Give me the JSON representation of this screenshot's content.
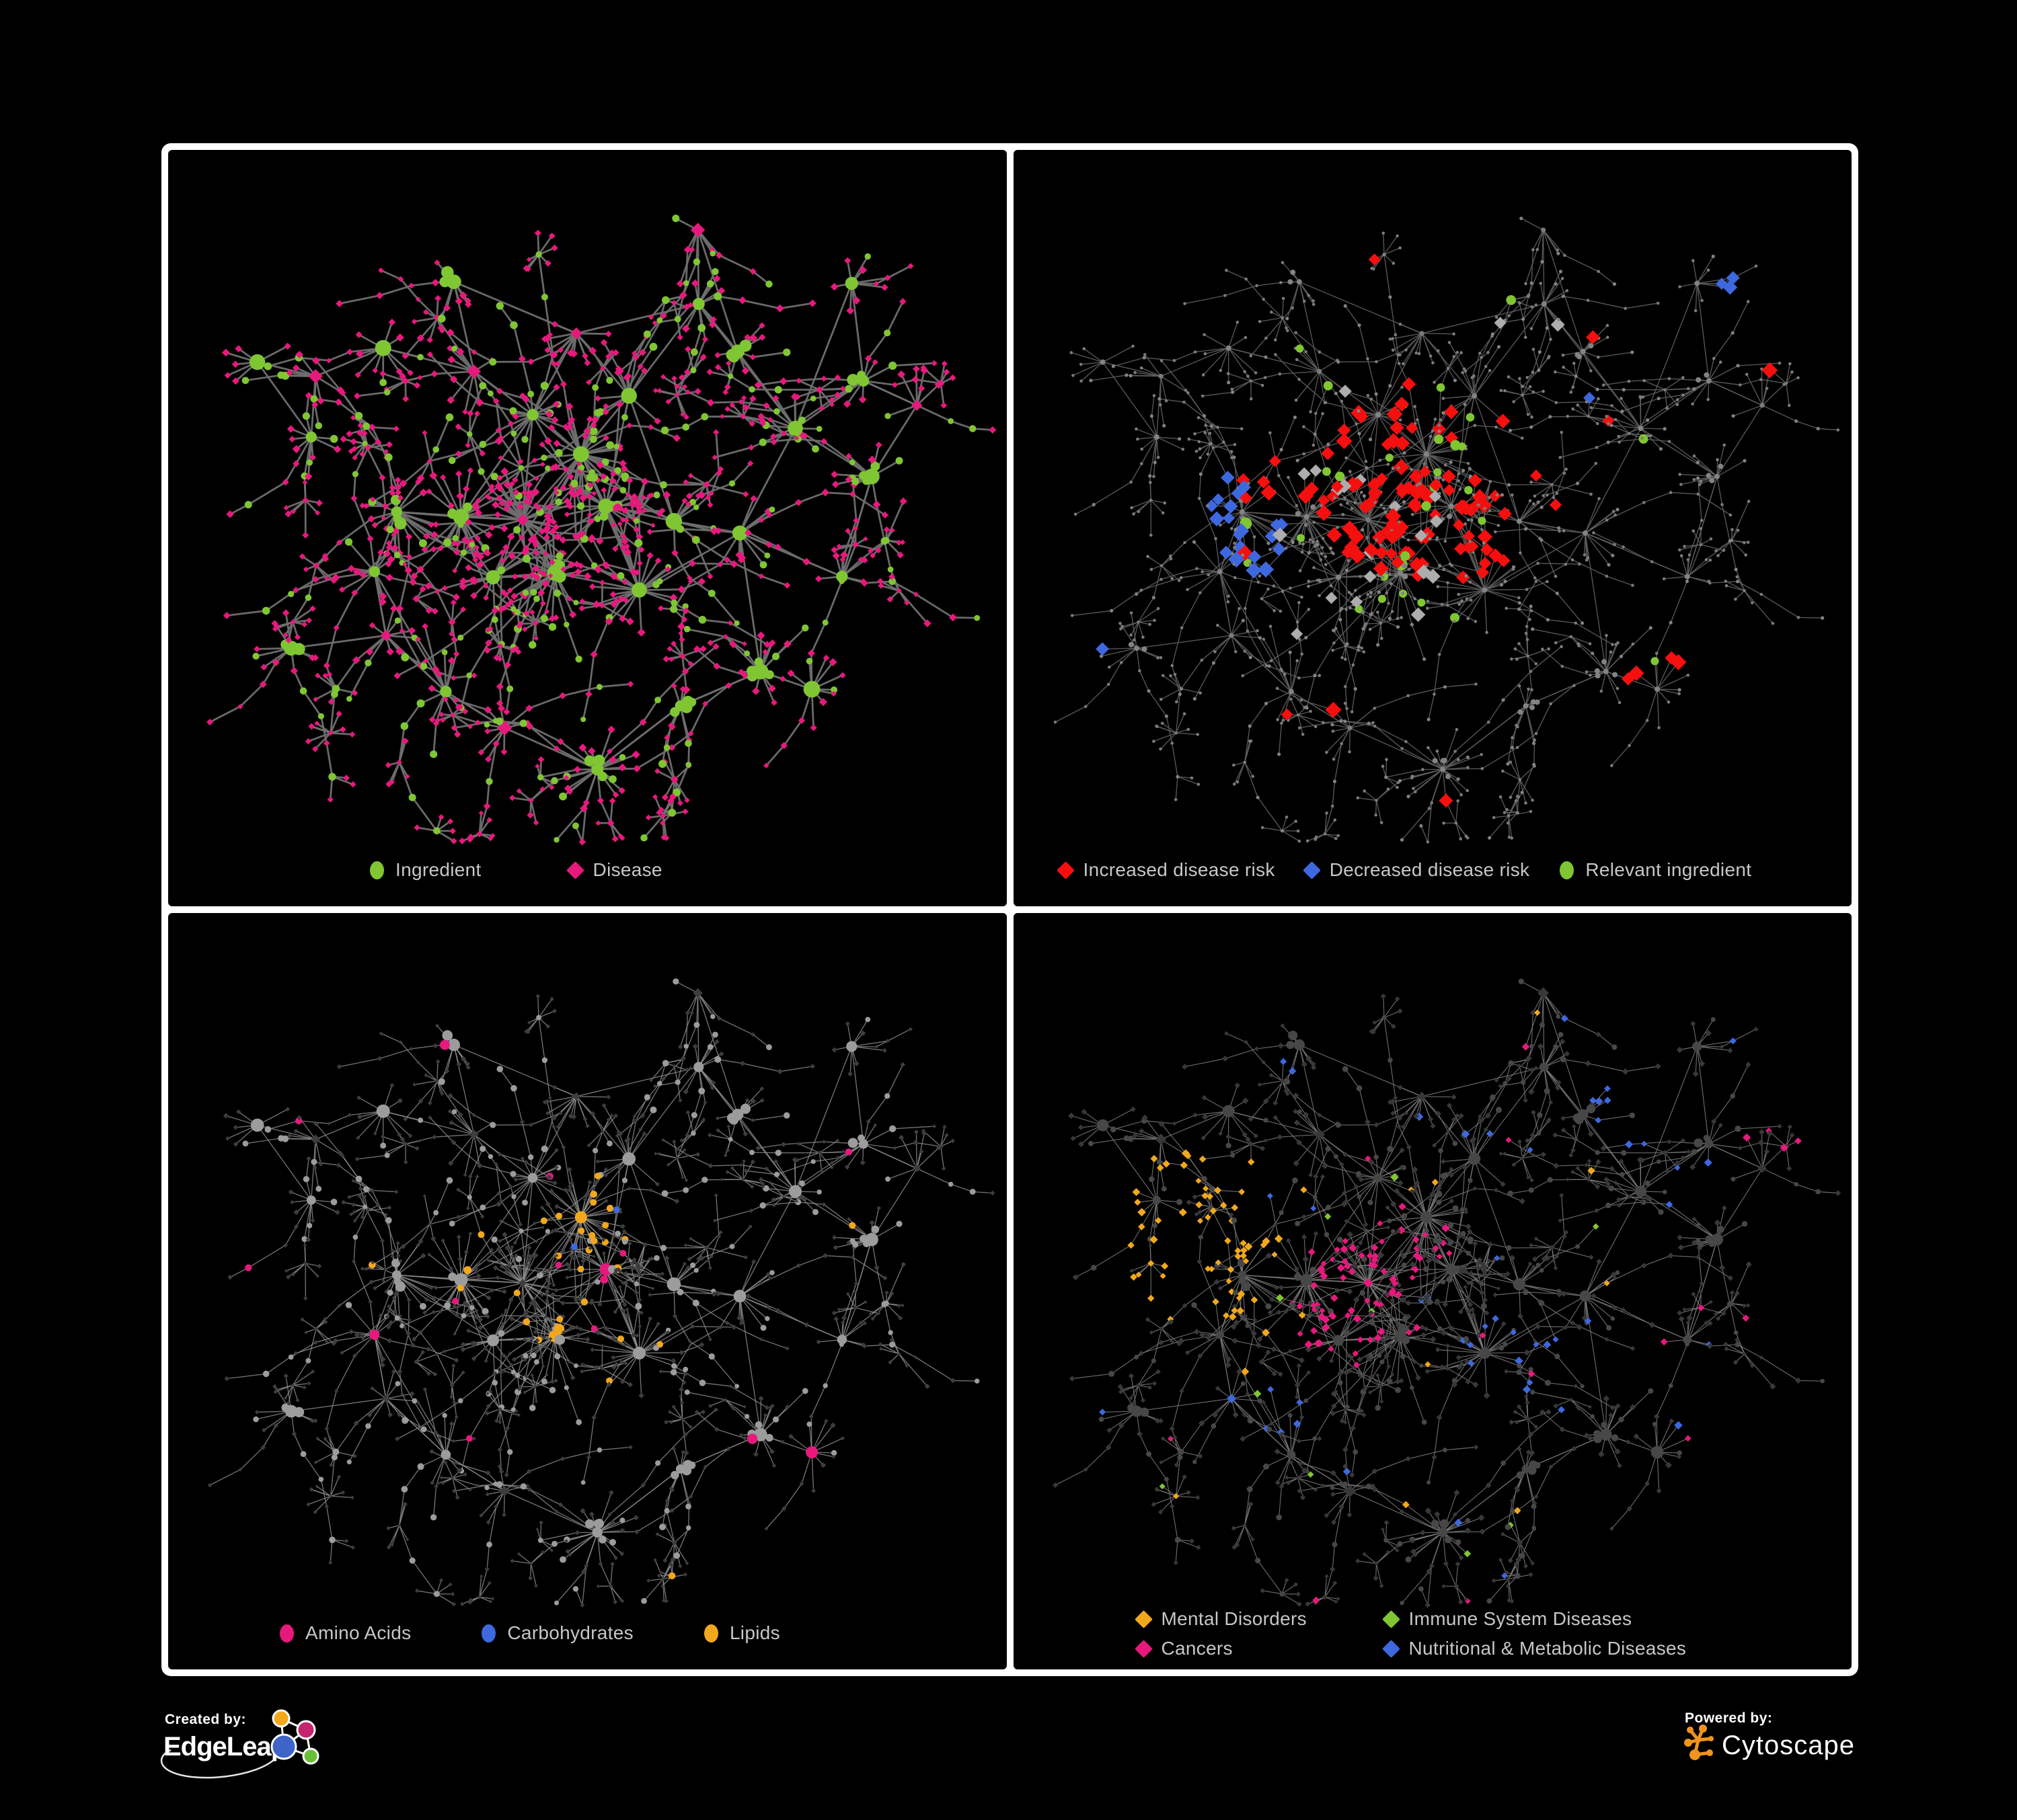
{
  "branding": {
    "created_by": "Created by:",
    "edgeleap_name": "EdgeLeap",
    "powered_by": "Powered by:",
    "cytoscape_name": "Cytoscape",
    "edgeleap_logo_colors": {
      "orange": "#F5A81C",
      "magenta": "#C4256E",
      "blue": "#3D64C8",
      "green": "#6ABF3A",
      "stroke": "#FFFFFF"
    },
    "cytoscape_logo_color": "#F0941E"
  },
  "colors": {
    "background": "#000000",
    "frame": "#FFFFFF",
    "legend_text": "#C7C7C7",
    "green": "#80C633",
    "pink": "#E7197D",
    "red": "#F50F0F",
    "blue": "#3E68DF",
    "orange": "#F2A81D",
    "gray_highlight": "#ADADAD"
  },
  "network": {
    "seed": 7,
    "chainProb": 0.28,
    "hubs": [
      [
        0.42,
        0.52,
        32
      ],
      [
        0.5,
        0.43,
        28
      ],
      [
        0.33,
        0.52,
        28
      ],
      [
        0.26,
        0.52,
        24
      ],
      [
        0.47,
        0.6,
        22
      ],
      [
        0.57,
        0.63,
        24
      ],
      [
        0.38,
        0.6,
        18
      ],
      [
        0.52,
        0.52,
        20
      ],
      [
        0.6,
        0.52,
        14
      ],
      [
        0.44,
        0.38,
        16
      ],
      [
        0.36,
        0.3,
        13
      ],
      [
        0.48,
        0.25,
        11
      ],
      [
        0.56,
        0.33,
        11
      ],
      [
        0.63,
        0.2,
        9
      ],
      [
        0.33,
        0.17,
        9
      ],
      [
        0.25,
        0.26,
        9
      ],
      [
        0.16,
        0.3,
        8
      ],
      [
        0.08,
        0.29,
        6
      ],
      [
        0.16,
        0.4,
        10
      ],
      [
        0.22,
        0.6,
        11
      ],
      [
        0.24,
        0.7,
        11
      ],
      [
        0.13,
        0.72,
        7
      ],
      [
        0.31,
        0.78,
        10
      ],
      [
        0.4,
        0.83,
        8
      ],
      [
        0.51,
        0.89,
        22
      ],
      [
        0.63,
        0.8,
        8
      ],
      [
        0.71,
        0.74,
        11
      ],
      [
        0.79,
        0.79,
        9
      ],
      [
        0.7,
        0.55,
        11
      ],
      [
        0.82,
        0.62,
        9
      ],
      [
        0.86,
        0.45,
        9
      ],
      [
        0.76,
        0.38,
        9
      ],
      [
        0.86,
        0.32,
        11
      ],
      [
        0.93,
        0.36,
        7
      ],
      [
        0.7,
        0.28,
        9
      ],
      [
        0.64,
        0.1,
        6
      ],
      [
        0.83,
        0.17,
        7
      ]
    ]
  },
  "panels": [
    {
      "name": "ingredient-disease-network",
      "legend": [
        {
          "label": "Ingredient",
          "shape": "circle",
          "color": "#80C633"
        },
        {
          "label": "Disease",
          "shape": "diamond",
          "color": "#E7197D"
        }
      ],
      "style": {
        "edgeColor": "#6F6F6F",
        "edgeWidth": 2.8,
        "edgeOpacity": 0.95,
        "circle": {
          "color": "#80C633",
          "sizeMult": 1.25
        },
        "diamond": {
          "color": "#E7197D",
          "sizeMult": 1.25
        }
      }
    },
    {
      "name": "disease-risk-network",
      "legend": [
        {
          "label": "Increased disease risk",
          "shape": "diamond",
          "color": "#F50F0F"
        },
        {
          "label": "Decreased disease risk",
          "shape": "diamond",
          "color": "#3E68DF"
        },
        {
          "label": "Relevant ingredient",
          "shape": "circle",
          "color": "#80C633"
        }
      ],
      "style": {
        "edgeColor": "#5E5E5E",
        "edgeWidth": 1.4,
        "edgeOpacity": 0.9,
        "circle": {
          "color": "#838383",
          "dot": true,
          "dotSize": 2.6
        },
        "diamond": {
          "color": "#7B7B7B",
          "dot": true,
          "dotSize": 2.3
        },
        "rules": [
          {
            "shape": "diamond",
            "color": "#F50F0F",
            "prob": 0.012,
            "clusterProb": 0.42,
            "sizeMult": 2.6,
            "min": 9,
            "max": 12,
            "clusters": [
              [
                0.45,
                0.42,
                0.09
              ],
              [
                0.49,
                0.52,
                0.08
              ],
              [
                0.4,
                0.5,
                0.07
              ],
              [
                0.56,
                0.55,
                0.06
              ],
              [
                0.3,
                0.47,
                0.05
              ],
              [
                0.62,
                0.44,
                0.04
              ],
              [
                0.78,
                0.76,
                0.04
              ]
            ]
          },
          {
            "shape": "diamond",
            "color": "#3E68DF",
            "prob": 0.004,
            "clusterProb": 0.5,
            "sizeMult": 2.6,
            "min": 9,
            "max": 12,
            "clusters": [
              [
                0.24,
                0.49,
                0.055
              ],
              [
                0.28,
                0.57,
                0.045
              ],
              [
                0.88,
                0.175,
                0.04
              ]
            ]
          },
          {
            "shape": "diamond",
            "color": "#ADADAD",
            "prob": 0.006,
            "clusterProb": 0.07,
            "sizeMult": 2.4,
            "min": 9,
            "max": 11,
            "clusters": [
              [
                0.45,
                0.5,
                0.16
              ]
            ]
          },
          {
            "shape": "circle",
            "color": "#80C633",
            "prob": 0.03,
            "clusterProb": 0.26,
            "sizeMult": 1.6,
            "min": 6,
            "max": 9,
            "clusters": [
              [
                0.43,
                0.47,
                0.2
              ]
            ]
          }
        ]
      }
    },
    {
      "name": "ingredient-class-network",
      "legend": [
        {
          "label": "Amino Acids",
          "shape": "circle",
          "color": "#E7197D"
        },
        {
          "label": "Carbohydrates",
          "shape": "circle",
          "color": "#3E68DF"
        },
        {
          "label": "Lipids",
          "shape": "circle",
          "color": "#F2A81D"
        }
      ],
      "style": {
        "edgeColor": "#8F8F8F",
        "edgeWidth": 1.35,
        "edgeOpacity": 0.8,
        "circle": {
          "color": "#9C9C9C",
          "sizeMult": 1.05
        },
        "diamond": {
          "color": "#3D3D3D",
          "sizeMult": 0.85
        },
        "rules": [
          {
            "shape": "circle",
            "color": "#F2A81D",
            "prob": 0.022,
            "clusterProb": 0.62,
            "sizeMult": 1.1,
            "min": 5,
            "max": 9,
            "clusters": [
              [
                0.5,
                0.42,
                0.06
              ],
              [
                0.44,
                0.53,
                0.07
              ],
              [
                0.55,
                0.64,
                0.05
              ],
              [
                0.34,
                0.5,
                0.05
              ],
              [
                0.62,
                0.45,
                0.04
              ]
            ]
          },
          {
            "shape": "circle",
            "color": "#3E68DF",
            "prob": 0.008,
            "clusterProb": 0.35,
            "sizeMult": 1.05,
            "min": 5,
            "max": 8,
            "clusters": [
              [
                0.51,
                0.4,
                0.05
              ],
              [
                0.47,
                0.46,
                0.04
              ]
            ]
          },
          {
            "shape": "circle",
            "color": "#E7197D",
            "prob": 0.04,
            "clusterProb": 0.28,
            "sizeMult": 1.15,
            "min": 5,
            "max": 9,
            "clusters": [
              [
                0.67,
                0.72,
                0.07
              ],
              [
                0.36,
                0.79,
                0.06
              ],
              [
                0.88,
                0.35,
                0.05
              ]
            ]
          }
        ]
      }
    },
    {
      "name": "disease-class-network",
      "legend": [
        {
          "label": "Mental Disorders",
          "shape": "diamond",
          "color": "#F2A81D"
        },
        {
          "label": "Immune System Diseases",
          "shape": "diamond",
          "color": "#80C633"
        },
        {
          "label": "Cancers",
          "shape": "diamond",
          "color": "#E7197D"
        },
        {
          "label": "Nutritional & Metabolic Diseases",
          "shape": "diamond",
          "color": "#3E68DF"
        }
      ],
      "style": {
        "edgeColor": "#7C7C7C",
        "edgeWidth": 1.15,
        "edgeOpacity": 0.85,
        "circle": {
          "color": "#474747",
          "sizeMult": 0.95
        },
        "diamond": {
          "color": "#383838",
          "sizeMult": 1.0
        },
        "rules": [
          {
            "shape": "diamond",
            "color": "#F2A81D",
            "prob": 0.01,
            "clusterProb": 0.8,
            "sizeMult": 1.3,
            "min": 4.5,
            "max": 7,
            "clusters": [
              [
                0.2,
                0.46,
                0.11
              ],
              [
                0.28,
                0.4,
                0.06
              ],
              [
                0.13,
                0.38,
                0.05
              ]
            ]
          },
          {
            "shape": "diamond",
            "color": "#E7197D",
            "prob": 0.013,
            "clusterProb": 0.55,
            "sizeMult": 1.3,
            "min": 4.5,
            "max": 7,
            "clusters": [
              [
                0.4,
                0.55,
                0.09
              ],
              [
                0.47,
                0.48,
                0.06
              ],
              [
                0.93,
                0.3,
                0.04
              ]
            ]
          },
          {
            "shape": "diamond",
            "color": "#3E68DF",
            "prob": 0.022,
            "clusterProb": 0.55,
            "sizeMult": 1.3,
            "min": 4.5,
            "max": 7,
            "clusters": [
              [
                0.6,
                0.62,
                0.06
              ],
              [
                0.76,
                0.27,
                0.06
              ],
              [
                0.87,
                0.12,
                0.05
              ],
              [
                0.84,
                0.4,
                0.05
              ],
              [
                0.57,
                0.1,
                0.045
              ],
              [
                0.3,
                0.72,
                0.04
              ]
            ]
          },
          {
            "shape": "diamond",
            "color": "#80C633",
            "prob": 0.011,
            "clusterProb": 0,
            "sizeMult": 1.3,
            "min": 4.5,
            "max": 7,
            "clusters": []
          }
        ]
      }
    }
  ]
}
